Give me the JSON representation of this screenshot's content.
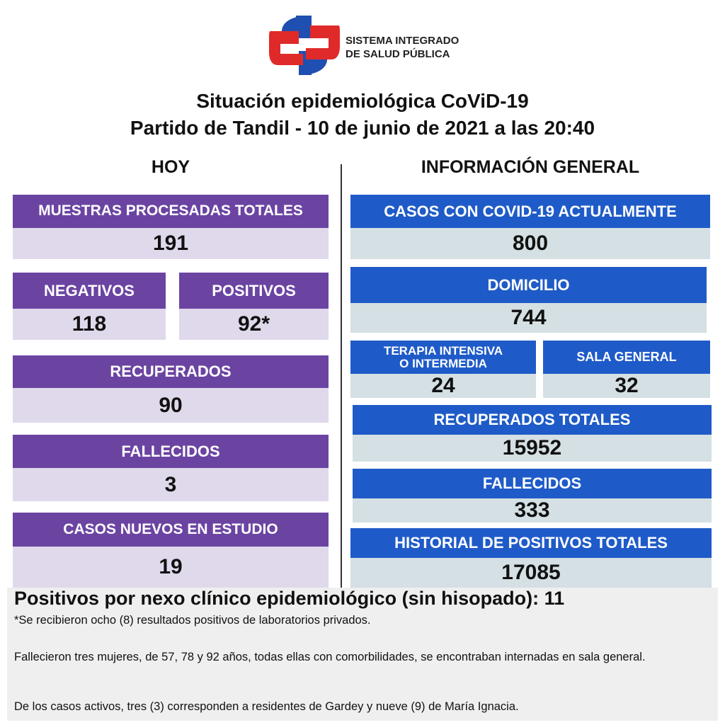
{
  "header": {
    "logo_lines": [
      "SISTEMA INTEGRADO",
      "DE SALUD PÚBLICA"
    ],
    "title_lines": [
      "Situación epidemiológica CoViD-19",
      "Partido de Tandil - 10 de junio de 2021 a las 20:40"
    ]
  },
  "hoy": {
    "heading": "HOY",
    "boxes": [
      {
        "label": "MUESTRAS PROCESADAS TOTALES",
        "value": 191
      },
      {
        "label": "NEGATIVOS",
        "value": 118
      },
      {
        "label": "POSITIVOS",
        "value": "92*"
      },
      {
        "label": "RECUPERADOS",
        "value": 90
      },
      {
        "label": "FALLECIDOS",
        "value": 3
      },
      {
        "label": "CASOS NUEVOS EN ESTUDIO",
        "value": 19
      }
    ]
  },
  "general": {
    "heading": "INFORMACIÓN GENERAL",
    "boxes": [
      {
        "label": "CASOS CON COVID-19 ACTUALMENTE",
        "value": 800
      },
      {
        "label": "DOMICILIO",
        "value": 744
      },
      {
        "label": [
          "TERAPIA INTENSIVA",
          "O INTERMEDIA"
        ],
        "value": 24
      },
      {
        "label": "SALA GENERAL",
        "value": 32
      },
      {
        "label": "RECUPERADOS TOTALES",
        "value": 15952
      },
      {
        "label": "FALLECIDOS",
        "value": 333
      },
      {
        "label": "HISTORIAL DE POSITIVOS TOTALES",
        "value": 17085
      }
    ]
  },
  "footer": {
    "headline": "Positivos por nexo clínico epidemiológico (sin hisopado): 11",
    "notes": [
      "*Se recibieron ocho (8) resultados positivos de laboratorios privados.",
      "Fallecieron tres mujeres, de 57, 78 y 92 años, todas ellas con comorbilidades, se encontraban internadas  en sala general.",
      "De los casos activos, tres (3) corresponden a residentes de Gardey y nueve (9) de María Ignacia."
    ]
  }
}
